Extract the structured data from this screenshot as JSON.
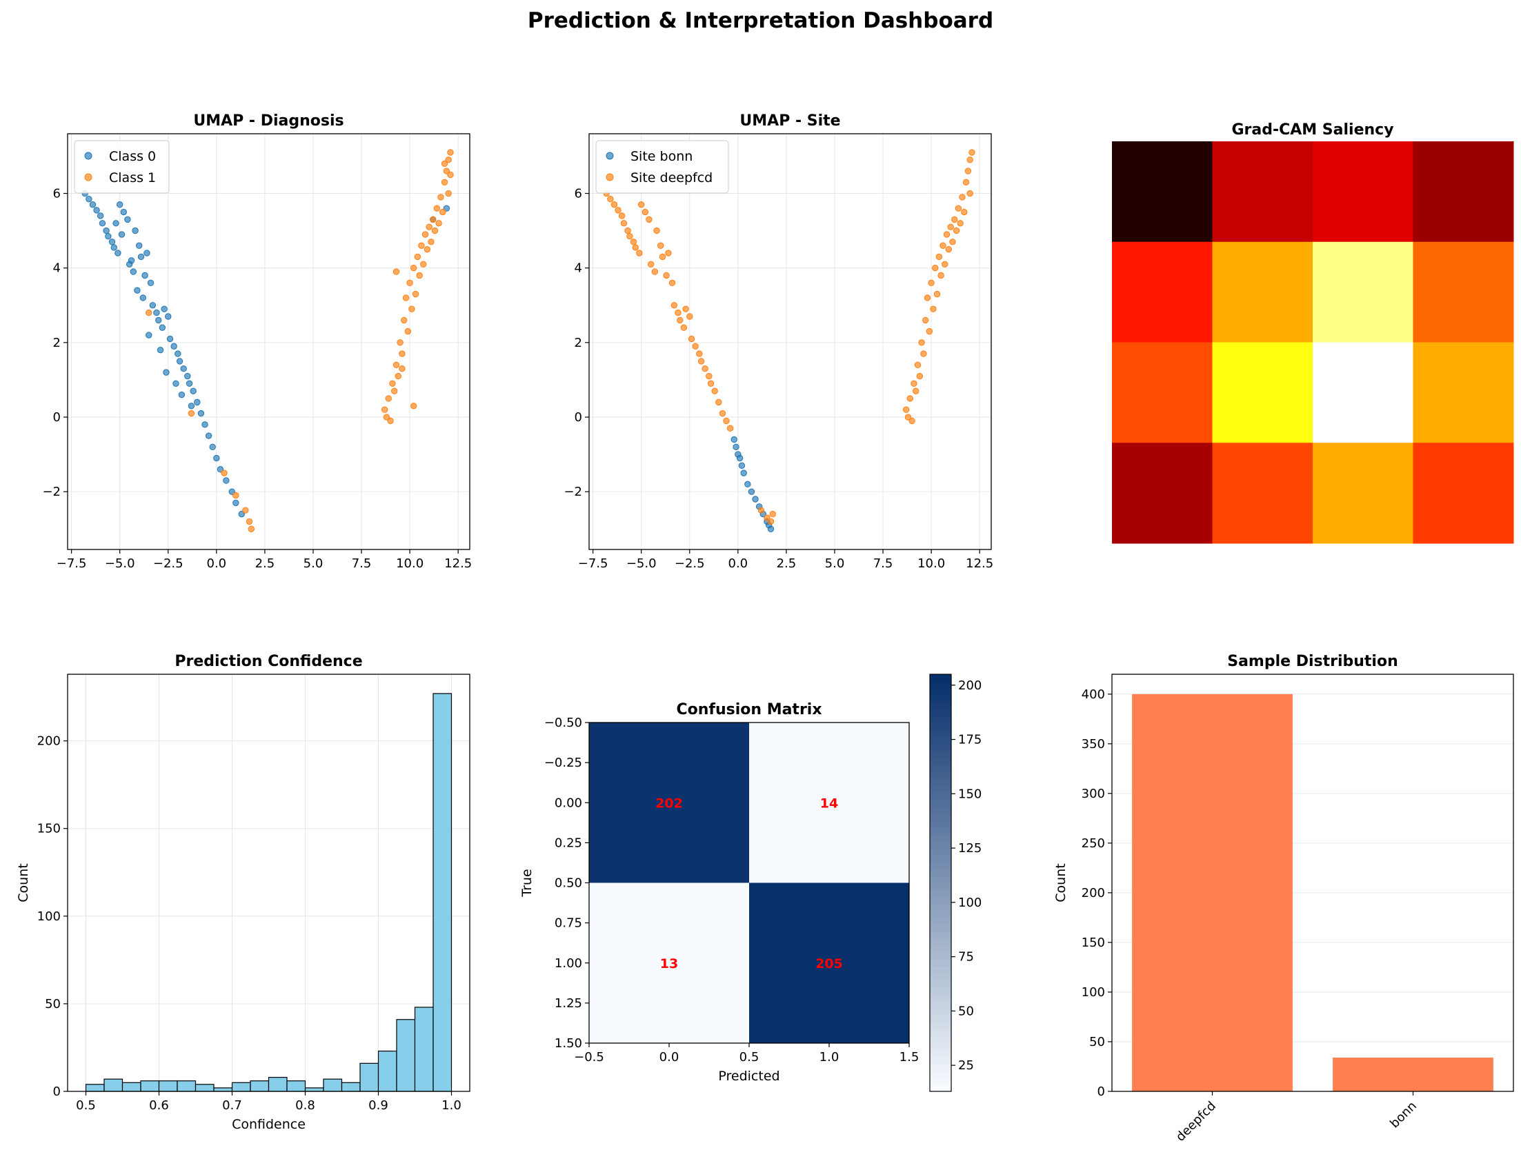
{
  "dashboard": {
    "title": "Prediction & Interpretation Dashboard"
  },
  "chart_data": [
    {
      "id": "umap_diagnosis",
      "type": "scatter",
      "title": "UMAP - Diagnosis",
      "xlabel": "",
      "ylabel": "",
      "xlim": [
        -7.7,
        13.1
      ],
      "ylim": [
        -3.55,
        7.6
      ],
      "xticks": [
        -7.5,
        -5.0,
        -2.5,
        0.0,
        2.5,
        5.0,
        7.5,
        10.0,
        12.5
      ],
      "yticks": [
        -2,
        0,
        2,
        4,
        6
      ],
      "grid": true,
      "legend": "top-left",
      "series": [
        {
          "name": "Class 0",
          "color": "#1f77b4",
          "x": [
            -6.8,
            -6.6,
            -6.4,
            -6.2,
            -6.0,
            -5.9,
            -5.7,
            -5.6,
            -5.4,
            -5.3,
            -5.1,
            -5.0,
            -4.8,
            -4.6,
            -4.5,
            -4.3,
            -4.2,
            -4.0,
            -3.9,
            -3.7,
            -3.6,
            -3.4,
            -3.3,
            -3.1,
            -3.0,
            -2.8,
            -2.7,
            -2.5,
            -2.4,
            -2.2,
            -2.0,
            -1.9,
            -1.7,
            -1.5,
            -1.4,
            -1.2,
            -1.0,
            -0.8,
            -0.6,
            -0.4,
            -0.2,
            0.0,
            0.2,
            0.5,
            0.8,
            1.0,
            1.3,
            -5.2,
            -4.9,
            -4.4,
            -4.1,
            -3.8,
            -3.5,
            -2.9,
            -2.6,
            -2.1,
            -1.8,
            -1.3,
            11.2,
            11.9
          ],
          "y": [
            6.0,
            5.85,
            5.7,
            5.55,
            5.4,
            5.2,
            5.0,
            4.85,
            4.7,
            4.55,
            4.4,
            5.7,
            5.5,
            5.3,
            4.1,
            3.9,
            5.0,
            4.6,
            4.3,
            3.8,
            4.4,
            3.6,
            3.0,
            2.8,
            2.6,
            2.4,
            2.9,
            2.7,
            2.1,
            1.9,
            1.7,
            1.5,
            1.3,
            1.1,
            0.9,
            0.7,
            0.4,
            0.1,
            -0.2,
            -0.5,
            -0.8,
            -1.1,
            -1.4,
            -1.7,
            -2.0,
            -2.3,
            -2.6,
            5.2,
            4.9,
            4.2,
            3.4,
            3.2,
            2.2,
            1.8,
            1.2,
            0.9,
            0.6,
            0.3,
            5.3,
            5.6
          ]
        },
        {
          "name": "Class 1",
          "color": "#ff7f0e",
          "x": [
            8.7,
            8.9,
            9.1,
            9.3,
            9.5,
            9.7,
            9.8,
            10.0,
            10.2,
            10.4,
            10.6,
            10.8,
            11.0,
            11.2,
            11.4,
            11.6,
            11.8,
            11.9,
            12.0,
            12.1,
            8.8,
            9.2,
            9.6,
            10.1,
            10.5,
            10.9,
            11.3,
            11.7,
            9.0,
            9.4,
            9.9,
            10.3,
            10.7,
            11.1,
            11.5,
            12.0,
            11.8,
            12.1,
            -3.5,
            -1.3,
            0.4,
            1.0,
            1.5,
            1.7,
            1.8,
            9.3,
            9.6,
            10.2
          ],
          "y": [
            0.2,
            0.5,
            0.9,
            1.4,
            2.0,
            2.6,
            3.2,
            3.6,
            4.0,
            4.3,
            4.6,
            4.9,
            5.1,
            5.3,
            5.6,
            5.9,
            6.3,
            6.6,
            6.9,
            7.1,
            0.0,
            0.7,
            1.7,
            2.9,
            3.8,
            4.5,
            5.0,
            5.5,
            -0.1,
            1.1,
            2.3,
            3.3,
            4.1,
            4.7,
            5.2,
            6.0,
            6.8,
            6.5,
            2.8,
            0.1,
            -1.5,
            -2.1,
            -2.5,
            -2.8,
            -3.0,
            3.9,
            1.3,
            0.3
          ]
        }
      ]
    },
    {
      "id": "umap_site",
      "type": "scatter",
      "title": "UMAP - Site",
      "xlabel": "",
      "ylabel": "",
      "xlim": [
        -7.7,
        13.1
      ],
      "ylim": [
        -3.55,
        7.6
      ],
      "xticks": [
        -7.5,
        -5.0,
        -2.5,
        0.0,
        2.5,
        5.0,
        7.5,
        10.0,
        12.5
      ],
      "yticks": [
        -2,
        0,
        2,
        4,
        6
      ],
      "grid": true,
      "legend": "top-left",
      "series": [
        {
          "name": "Site bonn",
          "color": "#1f77b4",
          "x": [
            -0.2,
            -0.1,
            0.0,
            0.1,
            0.2,
            0.3,
            0.5,
            0.7,
            0.9,
            1.1,
            1.3,
            1.5,
            1.6,
            1.7
          ],
          "y": [
            -0.6,
            -0.8,
            -1.0,
            -1.1,
            -1.3,
            -1.5,
            -1.8,
            -2.0,
            -2.2,
            -2.4,
            -2.6,
            -2.8,
            -2.9,
            -3.0
          ]
        },
        {
          "name": "Site deepfcd",
          "color": "#ff7f0e",
          "x": [
            -6.8,
            -6.6,
            -6.4,
            -6.2,
            -6.0,
            -5.9,
            -5.7,
            -5.6,
            -5.4,
            -5.3,
            -5.1,
            -5.0,
            -4.8,
            -4.6,
            -4.5,
            -4.3,
            -4.2,
            -4.0,
            -3.9,
            -3.7,
            -3.6,
            -3.4,
            -3.3,
            -3.1,
            -3.0,
            -2.8,
            -2.7,
            -2.5,
            -2.4,
            -2.2,
            -2.0,
            -1.9,
            -1.7,
            -1.5,
            -1.4,
            -1.2,
            -1.0,
            -0.8,
            -0.6,
            -0.4,
            1.2,
            1.5,
            1.7,
            1.8,
            8.7,
            8.9,
            9.1,
            9.3,
            9.5,
            9.7,
            9.8,
            10.0,
            10.2,
            10.4,
            10.6,
            10.8,
            11.0,
            11.2,
            11.4,
            11.6,
            11.8,
            11.9,
            12.0,
            12.1,
            8.8,
            9.2,
            9.6,
            10.1,
            10.5,
            10.9,
            11.3,
            11.7,
            9.0,
            9.4,
            9.9,
            10.3,
            10.7,
            11.1,
            11.5,
            12.0
          ],
          "y": [
            6.0,
            5.85,
            5.7,
            5.55,
            5.4,
            5.2,
            5.0,
            4.85,
            4.7,
            4.55,
            4.4,
            5.7,
            5.5,
            5.3,
            4.1,
            3.9,
            5.0,
            4.6,
            4.3,
            3.8,
            4.4,
            3.6,
            3.0,
            2.8,
            2.6,
            2.4,
            2.9,
            2.7,
            2.1,
            1.9,
            1.7,
            1.5,
            1.3,
            1.1,
            0.9,
            0.7,
            0.4,
            0.1,
            -0.1,
            -0.3,
            -2.5,
            -2.7,
            -2.8,
            -2.6,
            0.2,
            0.5,
            0.9,
            1.4,
            2.0,
            2.6,
            3.2,
            3.6,
            4.0,
            4.3,
            4.6,
            4.9,
            5.1,
            5.3,
            5.6,
            5.9,
            6.3,
            6.6,
            6.9,
            7.1,
            0.0,
            0.7,
            1.7,
            2.9,
            3.8,
            4.5,
            5.0,
            5.5,
            -0.1,
            1.1,
            2.3,
            3.3,
            4.1,
            4.7,
            5.2,
            6.0
          ]
        }
      ]
    },
    {
      "id": "gradcam",
      "type": "heatmap",
      "title": "Grad-CAM Saliency",
      "colormap": "hot",
      "values": [
        [
          0.05,
          0.28,
          0.32,
          0.22
        ],
        [
          0.4,
          0.62,
          0.88,
          0.52
        ],
        [
          0.48,
          0.76,
          1.0,
          0.62
        ],
        [
          0.24,
          0.47,
          0.62,
          0.45
        ]
      ]
    },
    {
      "id": "confidence",
      "type": "bar",
      "title": "Prediction Confidence",
      "xlabel": "Confidence",
      "ylabel": "Count",
      "xlim": [
        0.475,
        1.025
      ],
      "ylim": [
        0,
        238
      ],
      "xticks": [
        0.5,
        0.6,
        0.7,
        0.8,
        0.9,
        1.0
      ],
      "yticks": [
        0,
        50,
        100,
        150,
        200
      ],
      "grid": true,
      "color": "#87ceeb",
      "bin_edges": [
        0.5,
        0.525,
        0.55,
        0.575,
        0.6,
        0.625,
        0.65,
        0.675,
        0.7,
        0.725,
        0.75,
        0.775,
        0.8,
        0.825,
        0.85,
        0.875,
        0.9,
        0.925,
        0.95,
        0.975,
        1.0
      ],
      "values": [
        4,
        7,
        5,
        6,
        6,
        6,
        4,
        2,
        5,
        6,
        8,
        6,
        2,
        7,
        5,
        16,
        23,
        41,
        48,
        227
      ]
    },
    {
      "id": "confusion",
      "type": "heatmap",
      "title": "Confusion Matrix",
      "xlabel": "Predicted",
      "ylabel": "True",
      "colormap": "Blues",
      "xlim": [
        -0.5,
        1.5
      ],
      "ylim": [
        -0.5,
        1.5
      ],
      "xticks": [
        -0.5,
        0.0,
        0.5,
        1.0,
        1.5
      ],
      "yticks": [
        -0.5,
        -0.25,
        0.0,
        0.25,
        0.5,
        0.75,
        1.0,
        1.25,
        1.5
      ],
      "values": [
        [
          202,
          14
        ],
        [
          13,
          205
        ]
      ],
      "annotation_color": "#ff0000",
      "colorbar": {
        "min": 13,
        "max": 205,
        "ticks": [
          25,
          50,
          75,
          100,
          125,
          150,
          175,
          200
        ]
      }
    },
    {
      "id": "samples",
      "type": "bar",
      "title": "Sample Distribution",
      "xlabel": "",
      "ylabel": "Count",
      "ylim": [
        0,
        420
      ],
      "yticks": [
        0,
        50,
        100,
        150,
        200,
        250,
        300,
        350,
        400
      ],
      "grid": true,
      "color": "#ff7f50",
      "categories": [
        "deepfcd",
        "bonn"
      ],
      "values": [
        400,
        34
      ]
    }
  ]
}
